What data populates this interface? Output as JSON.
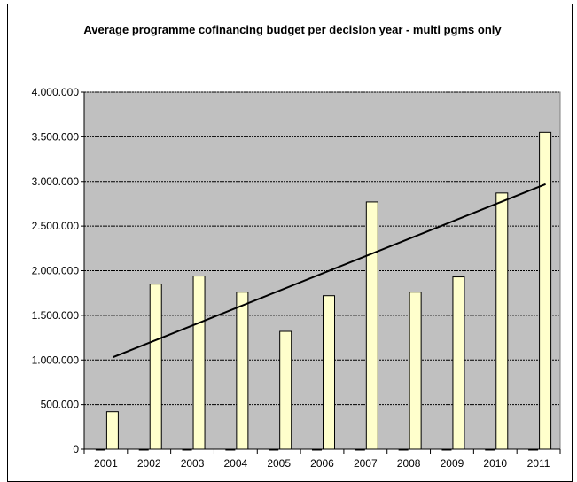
{
  "chart_data": {
    "type": "bar",
    "title": "Average programme cofinancing budget per decision year - multi pgms only",
    "categories": [
      "2001",
      "2002",
      "2003",
      "2004",
      "2005",
      "2006",
      "2007",
      "2008",
      "2009",
      "2010",
      "2011"
    ],
    "series": [
      {
        "values": [
          0,
          0,
          0,
          0,
          0,
          0,
          0,
          0,
          0,
          0,
          0
        ]
      },
      {
        "values": [
          420000,
          1850000,
          1940000,
          1760000,
          1320000,
          1720000,
          2770000,
          1760000,
          1930000,
          2870000,
          3550000
        ]
      }
    ],
    "trendline": {
      "type": "linear",
      "start": 1030000,
      "end": 2970000
    },
    "ylim": [
      0,
      4000000
    ],
    "y_ticks": [
      0,
      500000,
      1000000,
      1500000,
      2000000,
      2500000,
      3000000,
      3500000,
      4000000
    ],
    "y_tick_labels": [
      "0",
      "500.000",
      "1.000.000",
      "1.500.000",
      "2.000.000",
      "2.500.000",
      "3.000.000",
      "3.500.000",
      "4.000.000"
    ],
    "xlabel": "",
    "ylabel": "",
    "grid": true,
    "legend": "none",
    "colors": {
      "plot_bg": "#c0c0c0",
      "bar_fill": "#ffffcc",
      "bar_stroke": "#000000",
      "trendline": "#000000",
      "gridline": "#000000"
    }
  }
}
